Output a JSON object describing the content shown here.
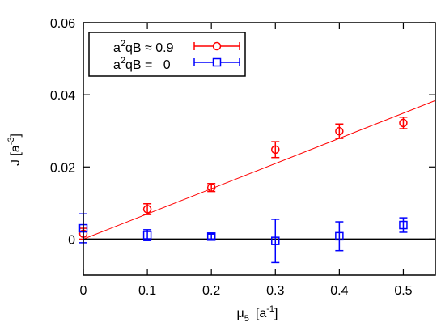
{
  "chart_data": {
    "type": "scatter",
    "xlabel": {
      "base": "μ",
      "sub": "5",
      "unit_open": "[a",
      "unit_sup": "-1",
      "unit_close": "]"
    },
    "ylabel": {
      "base": "J [a",
      "sup": "-3",
      "close": "]"
    },
    "xlim": [
      0,
      0.55
    ],
    "ylim": [
      -0.01,
      0.06
    ],
    "xticks": [
      0,
      0.1,
      0.2,
      0.3,
      0.4,
      0.5
    ],
    "xtick_labels": [
      "0",
      "0.1",
      "0.2",
      "0.3",
      "0.4",
      "0.5"
    ],
    "yticks": [
      0,
      0.02,
      0.04,
      0.06
    ],
    "ytick_labels": [
      "0",
      "0.02",
      "0.04",
      "0.06"
    ],
    "grid": false,
    "legend_position": "top-left",
    "zero_line": true,
    "series": [
      {
        "legend": {
          "pre": "a",
          "sup": "2",
          "post": "qB ≈ 0.9"
        },
        "color": "#ff0000",
        "marker": "circle",
        "points": [
          {
            "x": 0.0,
            "y": 0.0015,
            "err": 0.0015
          },
          {
            "x": 0.1,
            "y": 0.0083,
            "err": 0.0015
          },
          {
            "x": 0.2,
            "y": 0.0143,
            "err": 0.0011
          },
          {
            "x": 0.3,
            "y": 0.0248,
            "err": 0.0022
          },
          {
            "x": 0.4,
            "y": 0.0299,
            "err": 0.002
          },
          {
            "x": 0.5,
            "y": 0.0322,
            "err": 0.0016
          }
        ],
        "fit": {
          "x": [
            0,
            0.55
          ],
          "y": [
            0.0,
            0.0384
          ]
        }
      },
      {
        "legend": {
          "pre": "a",
          "sup": "2",
          "post": "qB =   0"
        },
        "color": "#0000ff",
        "marker": "square",
        "points": [
          {
            "x": 0.0,
            "y": 0.003,
            "err": 0.004
          },
          {
            "x": 0.1,
            "y": 0.0011,
            "err": 0.0015
          },
          {
            "x": 0.2,
            "y": 0.0007,
            "err": 0.0007
          },
          {
            "x": 0.3,
            "y": -0.0005,
            "err": 0.006
          },
          {
            "x": 0.4,
            "y": 0.0008,
            "err": 0.004
          },
          {
            "x": 0.5,
            "y": 0.0039,
            "err": 0.002
          }
        ]
      }
    ]
  }
}
